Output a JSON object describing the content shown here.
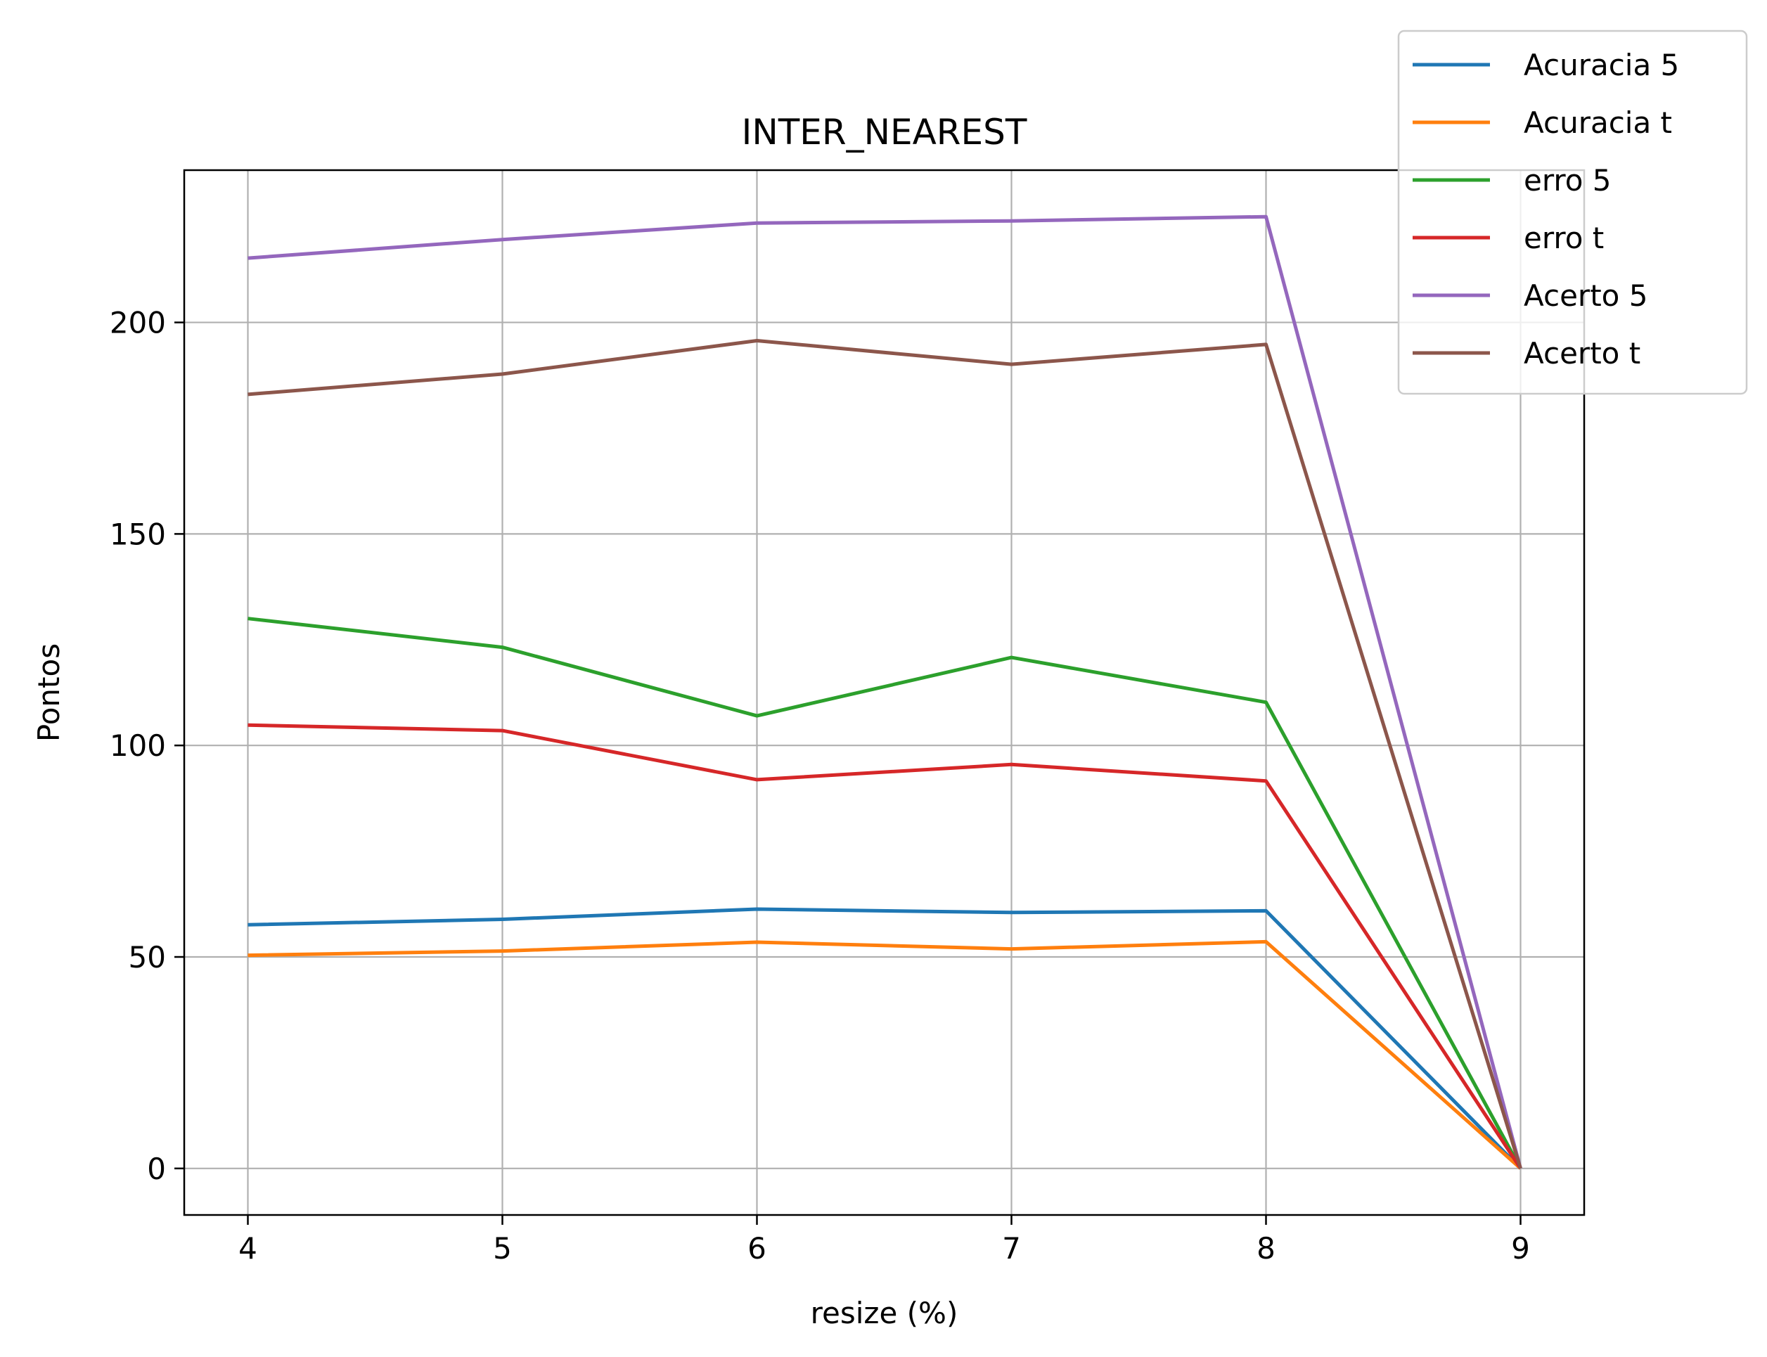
{
  "chart_data": {
    "type": "line",
    "title": "INTER_NEAREST",
    "xlabel": "resize (%)",
    "ylabel": "Pontos",
    "x": [
      4,
      5,
      6,
      7,
      8,
      9
    ],
    "xlim": [
      3.75,
      9.25
    ],
    "ylim": [
      -11,
      236
    ],
    "xticks": [
      4,
      5,
      6,
      7,
      8,
      9
    ],
    "yticks": [
      0,
      50,
      100,
      150,
      200
    ],
    "grid": true,
    "legend_position": "top-right",
    "series": [
      {
        "name": "Acuracia 5",
        "color": "#1f77b4",
        "values": [
          57.6,
          58.9,
          61.3,
          60.5,
          60.9,
          0
        ]
      },
      {
        "name": "Acuracia t",
        "color": "#ff7f0e",
        "values": [
          50.4,
          51.4,
          53.5,
          51.9,
          53.6,
          0
        ]
      },
      {
        "name": "erro 5",
        "color": "#2ca02c",
        "values": [
          130,
          123.2,
          107,
          120.8,
          110.2,
          0
        ]
      },
      {
        "name": "erro t",
        "color": "#d62728",
        "values": [
          104.8,
          103.5,
          91.9,
          95.5,
          91.6,
          0
        ]
      },
      {
        "name": "Acerto 5",
        "color": "#9467bd",
        "values": [
          215.2,
          219.6,
          223.5,
          224,
          225,
          0
        ]
      },
      {
        "name": "Acerto t",
        "color": "#8c564b",
        "values": [
          183,
          187.8,
          195.7,
          190.1,
          194.8,
          0
        ]
      }
    ]
  }
}
